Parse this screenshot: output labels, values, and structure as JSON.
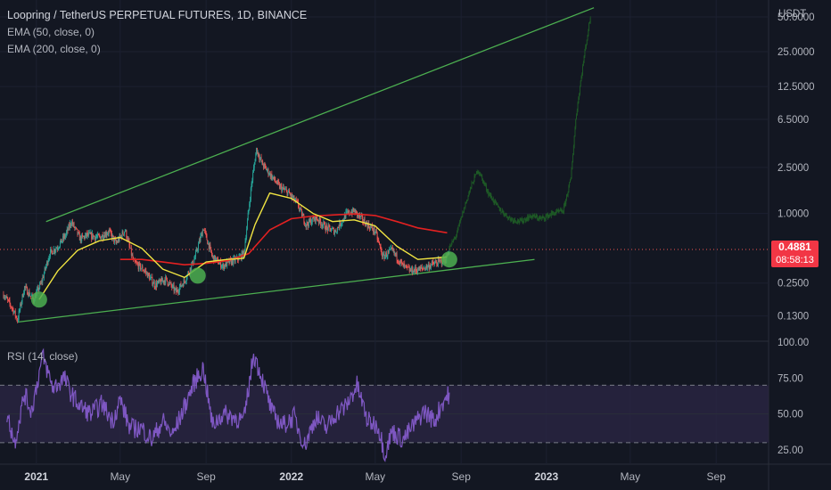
{
  "header": {
    "title": "Loopring / TetherUS PERPETUAL FUTURES, 1D, BINANCE",
    "ema_50": "EMA (50, close, 0)",
    "ema_200": "EMA (200, close, 0)",
    "rsi_label": "RSI (14, close)"
  },
  "price_scale": {
    "currency": "USDT",
    "last_price": "0.4881",
    "countdown": "08:58:13",
    "last_price_color": "#f23645"
  },
  "colors": {
    "background": "#131722",
    "up": "#26a69a",
    "down": "#ef5350",
    "ema50": "#f0e442",
    "ema200": "#e32121",
    "trendline": "#4caf50",
    "projection": "#1e5a26",
    "rsi": "#7e57c2",
    "rsi_band": "#2a2544"
  },
  "chart_data": [
    {
      "type": "candlestick",
      "symbol": "LRCUSDT perpetual futures",
      "interval": "1D",
      "y_scale": "log",
      "ylim": [
        0.08,
        70
      ],
      "y_ticks": [
        50,
        25,
        12.5,
        6.5,
        2.5,
        1,
        0.25,
        0.13
      ],
      "y_tick_labels": [
        "50.0000",
        "25.0000",
        "12.5000",
        "6.5000",
        "2.5000",
        "1.0000",
        "0.2500",
        "0.1300"
      ],
      "x_range": [
        "2020-11-10",
        "2023-11-15"
      ],
      "x_ticks": [
        {
          "date": "2021-01-01",
          "label": "2021",
          "major": true
        },
        {
          "date": "2021-05-01",
          "label": "May",
          "major": false
        },
        {
          "date": "2021-09-01",
          "label": "Sep",
          "major": false
        },
        {
          "date": "2022-01-01",
          "label": "2022",
          "major": true
        },
        {
          "date": "2022-05-01",
          "label": "May",
          "major": false
        },
        {
          "date": "2022-09-01",
          "label": "Sep",
          "major": false
        },
        {
          "date": "2023-01-01",
          "label": "2023",
          "major": true
        },
        {
          "date": "2023-05-01",
          "label": "May",
          "major": false
        },
        {
          "date": "2023-09-01",
          "label": "Sep",
          "major": false
        }
      ],
      "price_path": [
        [
          "2020-11-15",
          0.2
        ],
        [
          "2020-11-28",
          0.15
        ],
        [
          "2020-12-05",
          0.12
        ],
        [
          "2020-12-15",
          0.23
        ],
        [
          "2020-12-28",
          0.18
        ],
        [
          "2021-01-08",
          0.25
        ],
        [
          "2021-01-20",
          0.45
        ],
        [
          "2021-02-01",
          0.52
        ],
        [
          "2021-02-12",
          0.65
        ],
        [
          "2021-02-20",
          0.85
        ],
        [
          "2021-03-05",
          0.6
        ],
        [
          "2021-03-15",
          0.65
        ],
        [
          "2021-04-01",
          0.62
        ],
        [
          "2021-04-15",
          0.7
        ],
        [
          "2021-04-25",
          0.55
        ],
        [
          "2021-05-08",
          0.72
        ],
        [
          "2021-05-20",
          0.38
        ],
        [
          "2021-06-05",
          0.32
        ],
        [
          "2021-06-20",
          0.24
        ],
        [
          "2021-07-05",
          0.27
        ],
        [
          "2021-07-20",
          0.21
        ],
        [
          "2021-08-01",
          0.26
        ],
        [
          "2021-08-15",
          0.4
        ],
        [
          "2021-08-28",
          0.75
        ],
        [
          "2021-09-10",
          0.42
        ],
        [
          "2021-09-25",
          0.35
        ],
        [
          "2021-10-05",
          0.38
        ],
        [
          "2021-10-15",
          0.4
        ],
        [
          "2021-10-25",
          0.45
        ],
        [
          "2021-11-05",
          1.8
        ],
        [
          "2021-11-12",
          3.6
        ],
        [
          "2021-11-20",
          2.7
        ],
        [
          "2021-12-01",
          2.2
        ],
        [
          "2021-12-15",
          1.7
        ],
        [
          "2021-12-28",
          1.5
        ],
        [
          "2022-01-10",
          1.2
        ],
        [
          "2022-01-22",
          0.8
        ],
        [
          "2022-02-05",
          0.92
        ],
        [
          "2022-02-20",
          0.75
        ],
        [
          "2022-03-05",
          0.7
        ],
        [
          "2022-03-20",
          0.98
        ],
        [
          "2022-04-01",
          1.05
        ],
        [
          "2022-04-15",
          0.85
        ],
        [
          "2022-05-01",
          0.7
        ],
        [
          "2022-05-12",
          0.42
        ],
        [
          "2022-05-25",
          0.48
        ],
        [
          "2022-06-10",
          0.35
        ],
        [
          "2022-06-20",
          0.32
        ],
        [
          "2022-07-05",
          0.33
        ],
        [
          "2022-07-20",
          0.36
        ],
        [
          "2022-08-01",
          0.38
        ],
        [
          "2022-08-10",
          0.4
        ],
        [
          "2022-08-15",
          0.4881
        ]
      ],
      "ema50_path": [
        [
          "2021-01-05",
          0.18
        ],
        [
          "2021-02-01",
          0.32
        ],
        [
          "2021-03-01",
          0.48
        ],
        [
          "2021-04-01",
          0.58
        ],
        [
          "2021-05-01",
          0.62
        ],
        [
          "2021-06-01",
          0.5
        ],
        [
          "2021-07-01",
          0.33
        ],
        [
          "2021-08-01",
          0.28
        ],
        [
          "2021-09-01",
          0.38
        ],
        [
          "2021-10-01",
          0.4
        ],
        [
          "2021-10-25",
          0.41
        ],
        [
          "2021-11-10",
          0.8
        ],
        [
          "2021-12-01",
          1.5
        ],
        [
          "2022-01-01",
          1.35
        ],
        [
          "2022-02-01",
          1.0
        ],
        [
          "2022-03-01",
          0.85
        ],
        [
          "2022-04-01",
          0.88
        ],
        [
          "2022-05-01",
          0.78
        ],
        [
          "2022-06-01",
          0.52
        ],
        [
          "2022-07-01",
          0.4
        ],
        [
          "2022-08-12",
          0.42
        ]
      ],
      "ema200_path": [
        [
          "2021-05-01",
          0.4
        ],
        [
          "2021-06-01",
          0.4
        ],
        [
          "2021-07-01",
          0.38
        ],
        [
          "2021-08-01",
          0.36
        ],
        [
          "2021-09-01",
          0.37
        ],
        [
          "2021-10-01",
          0.39
        ],
        [
          "2021-11-01",
          0.45
        ],
        [
          "2021-12-01",
          0.72
        ],
        [
          "2022-01-01",
          0.9
        ],
        [
          "2022-02-01",
          0.95
        ],
        [
          "2022-03-01",
          0.97
        ],
        [
          "2022-04-01",
          0.99
        ],
        [
          "2022-05-01",
          0.96
        ],
        [
          "2022-06-01",
          0.85
        ],
        [
          "2022-07-01",
          0.75
        ],
        [
          "2022-08-12",
          0.68
        ]
      ],
      "projection_path": [
        [
          "2022-08-15",
          0.5
        ],
        [
          "2022-08-25",
          0.65
        ],
        [
          "2022-09-05",
          1.1
        ],
        [
          "2022-09-15",
          1.7
        ],
        [
          "2022-09-25",
          2.4
        ],
        [
          "2022-10-10",
          1.5
        ],
        [
          "2022-10-25",
          1.1
        ],
        [
          "2022-11-10",
          0.9
        ],
        [
          "2022-11-25",
          0.85
        ],
        [
          "2022-12-10",
          0.95
        ],
        [
          "2022-12-25",
          0.9
        ],
        [
          "2023-01-10",
          1.0
        ],
        [
          "2023-01-25",
          1.05
        ],
        [
          "2023-02-05",
          2.0
        ],
        [
          "2023-02-12",
          6.5
        ],
        [
          "2023-02-18",
          12.5
        ],
        [
          "2023-02-25",
          25
        ],
        [
          "2023-03-05",
          50
        ]
      ],
      "trendlines": [
        {
          "name": "upper",
          "from": [
            "2021-01-15",
            0.85
          ],
          "to": [
            "2023-03-10",
            60
          ]
        },
        {
          "name": "lower",
          "from": [
            "2020-12-05",
            0.115
          ],
          "to": [
            "2022-12-15",
            0.4
          ]
        }
      ],
      "markers": [
        {
          "date": "2021-01-05",
          "value": 0.18
        },
        {
          "date": "2021-08-20",
          "value": 0.29
        },
        {
          "date": "2022-08-15",
          "value": 0.4
        }
      ],
      "last_price_value": 0.4881
    },
    {
      "type": "line",
      "title": "RSI (14, close)",
      "ylim": [
        15,
        100
      ],
      "y_ticks": [
        100,
        75,
        50,
        25
      ],
      "y_tick_labels": [
        "100.00",
        "75.00",
        "50.00",
        "25.00"
      ],
      "band": [
        30,
        70
      ],
      "rsi_path": [
        [
          "2020-11-20",
          50
        ],
        [
          "2020-12-01",
          30
        ],
        [
          "2020-12-15",
          64
        ],
        [
          "2020-12-25",
          52
        ],
        [
          "2021-01-10",
          90
        ],
        [
          "2021-01-25",
          68
        ],
        [
          "2021-02-10",
          75
        ],
        [
          "2021-02-20",
          64
        ],
        [
          "2021-03-05",
          55
        ],
        [
          "2021-03-20",
          50
        ],
        [
          "2021-04-05",
          57
        ],
        [
          "2021-04-20",
          45
        ],
        [
          "2021-05-01",
          60
        ],
        [
          "2021-05-15",
          40
        ],
        [
          "2021-06-01",
          40
        ],
        [
          "2021-06-15",
          32
        ],
        [
          "2021-07-01",
          45
        ],
        [
          "2021-07-15",
          35
        ],
        [
          "2021-08-01",
          55
        ],
        [
          "2021-08-15",
          72
        ],
        [
          "2021-08-28",
          82
        ],
        [
          "2021-09-10",
          42
        ],
        [
          "2021-09-25",
          50
        ],
        [
          "2021-10-10",
          48
        ],
        [
          "2021-10-25",
          45
        ],
        [
          "2021-11-08",
          92
        ],
        [
          "2021-11-20",
          75
        ],
        [
          "2021-12-05",
          50
        ],
        [
          "2021-12-20",
          42
        ],
        [
          "2022-01-05",
          48
        ],
        [
          "2022-01-20",
          28
        ],
        [
          "2022-02-05",
          48
        ],
        [
          "2022-02-20",
          40
        ],
        [
          "2022-03-05",
          50
        ],
        [
          "2022-03-20",
          55
        ],
        [
          "2022-04-05",
          70
        ],
        [
          "2022-04-20",
          45
        ],
        [
          "2022-05-05",
          42
        ],
        [
          "2022-05-15",
          22
        ],
        [
          "2022-05-25",
          38
        ],
        [
          "2022-06-10",
          32
        ],
        [
          "2022-06-25",
          42
        ],
        [
          "2022-07-10",
          52
        ],
        [
          "2022-07-25",
          45
        ],
        [
          "2022-08-05",
          58
        ],
        [
          "2022-08-15",
          64
        ]
      ]
    }
  ]
}
